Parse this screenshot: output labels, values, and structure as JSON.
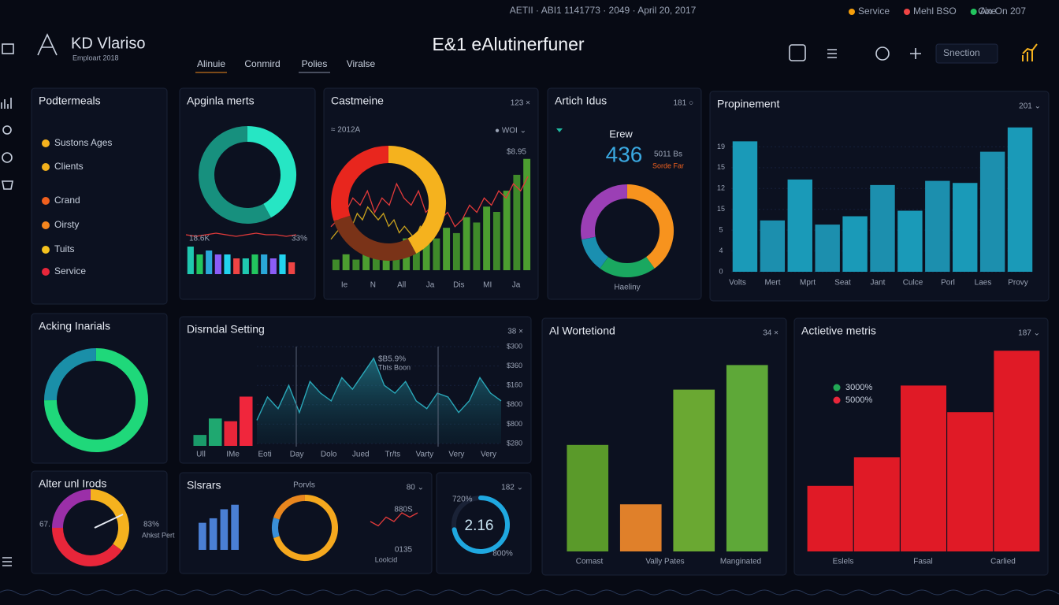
{
  "header": {
    "status": "AETII · ABI1 1141773 · 2049 · April 20, 2017",
    "brand": "KD Vlariso",
    "brand_sub": "Emploart 2018",
    "title": "E&1 eAlutinerfuner",
    "tabs": [
      "Alinuie",
      "Conmird",
      "Polies",
      "Viralse"
    ],
    "legend": [
      {
        "name": "Service",
        "color": "#f59e0b"
      },
      {
        "name": "Mehl BSO",
        "color": "#ef4444"
      },
      {
        "name": "Axe",
        "color": "#22c55e"
      }
    ],
    "status_right": "Cin On 207",
    "dropdown": "Snection"
  },
  "panels": [
    {
      "title": "Podtermeals",
      "items": [
        {
          "name": "Sustons Ages",
          "color": "#f5b21e"
        },
        {
          "name": "Clients",
          "color": "#f2b01c"
        },
        {
          "name": "Crand",
          "color": "#f0601e"
        },
        {
          "name": "Oirsty",
          "color": "#f5861e"
        },
        {
          "name": "Tuits",
          "color": "#f5c21e"
        },
        {
          "name": "Service",
          "color": "#e8263a"
        }
      ]
    },
    {
      "title": "Apginla merts",
      "annotations": [
        "18.6K",
        "33%"
      ],
      "charts": [
        {
          "type": "donut",
          "values": [
            42,
            58
          ],
          "colors": [
            "#26e6c4",
            "#17907e"
          ]
        },
        {
          "type": "line",
          "values": [
            5,
            4,
            5,
            6,
            5,
            4,
            5,
            6,
            5,
            5,
            4,
            5
          ],
          "ylim": [
            0,
            8
          ],
          "color": "#e23a3a"
        },
        {
          "type": "bar",
          "values": [
            7,
            5,
            6,
            5,
            5,
            4,
            4,
            5,
            5,
            4,
            5,
            3
          ],
          "ylim": [
            0,
            8
          ],
          "colors": [
            "#1fc8b0",
            "#22c55e",
            "#2aa7d8",
            "#8b5cf6",
            "#22d3ee",
            "#ef4444"
          ]
        }
      ]
    },
    {
      "title": "Castmeine",
      "corner": "123 ×",
      "annotations": [
        "≈ 2012A",
        "● WOI ⌄",
        "$8.95"
      ],
      "xlabels": [
        "Ie",
        "N",
        "All",
        "Ja",
        "Dis",
        "MI",
        "Ja"
      ],
      "charts": [
        {
          "type": "bar",
          "values": [
            2,
            3,
            2,
            4,
            3,
            5,
            4,
            6,
            5,
            7,
            6,
            8,
            7,
            10,
            9,
            12,
            11,
            15,
            18,
            21
          ],
          "ylim": [
            0,
            22
          ],
          "colors": [
            "#3f8a2a",
            "#4c9e30"
          ]
        },
        {
          "type": "line",
          "values": [
            3,
            4,
            5,
            7,
            6,
            8,
            5,
            7,
            6,
            9,
            7,
            6,
            8,
            5,
            6,
            4,
            5,
            3,
            4,
            6,
            5,
            7,
            6,
            8,
            7,
            9,
            8,
            10
          ],
          "ylim": [
            0,
            11
          ],
          "color": "#e23a3a"
        },
        {
          "type": "line",
          "values": [
            2,
            3,
            4,
            5,
            4,
            6,
            5,
            7,
            6,
            5,
            6,
            4,
            5,
            3,
            4,
            3,
            2,
            4,
            3,
            5,
            4,
            6
          ],
          "ylim": [
            0,
            11
          ],
          "color": "#c9a21e"
        },
        {
          "type": "donut",
          "values": [
            42,
            28,
            30
          ],
          "colors": [
            "#f5b21e",
            "#7a3318",
            "#e8261e"
          ]
        }
      ]
    },
    {
      "title": "Artich Idus",
      "corner": "181 ○",
      "annotations": [
        "Erew",
        "436",
        "5011 Bs",
        "Sorde Far",
        "Haeliny"
      ],
      "charts": [
        {
          "type": "donut",
          "values": [
            40,
            20,
            12,
            28
          ],
          "colors": [
            "#f7931e",
            "#1aa860",
            "#1a8fb0",
            "#9b3fb5"
          ]
        }
      ]
    },
    {
      "title": "Propinement",
      "corner": "201 ⌄",
      "xlabels": [
        "Volts",
        "Mert",
        "Mprt",
        "Seat",
        "Jant",
        "Culce",
        "Porl",
        "Laes",
        "Provy"
      ],
      "charts": [
        {
          "type": "bar",
          "values": [
            18.8,
            7.4,
            13.3,
            6.8,
            8,
            12.5,
            8.8,
            13.1,
            12.8,
            17.3,
            20.8
          ],
          "ylim": [
            0,
            21
          ],
          "yticks": [
            0,
            {
              "value": 3,
              "label": "4"
            },
            {
              "value": 6,
              "label": "5"
            },
            {
              "value": 9,
              "label": "15"
            },
            12,
            {
              "value": 15,
              "label": "15"
            },
            {
              "value": 18,
              "label": "19"
            }
          ],
          "colors": [
            "#1a9ab8",
            "#1c8fae"
          ]
        }
      ]
    },
    {
      "title": "Acking Inarials",
      "charts": [
        {
          "type": "donut",
          "values": [
            75,
            25
          ],
          "colors": [
            "#1fd87a",
            "#1a8fa8"
          ]
        }
      ]
    },
    {
      "title": "Disrndal Setting",
      "corner": "38 ×",
      "annotations": [
        "$B5.9%",
        "Tbts Boon"
      ],
      "xlabels": [
        "Ull",
        "IMe",
        "Eoti",
        "Day",
        "Dolo",
        "Jued",
        "Tr/ts",
        "Varty",
        "Very",
        "Very"
      ],
      "charts": [
        {
          "type": "bar",
          "values": [
            2,
            5,
            4.5,
            9
          ],
          "ylim": [
            0,
            9.5
          ],
          "colors": [
            "#1a9a6a",
            "#1fa870",
            "#e8263a",
            "#f0263c"
          ]
        },
        {
          "type": "area",
          "values": [
            1.2,
            2.4,
            1.8,
            3,
            1.6,
            3.2,
            2.6,
            2.2,
            3.4,
            2.8,
            3.6,
            4.4,
            3,
            2.6,
            3.2,
            2.2,
            1.8,
            2.6,
            2.4,
            1.6,
            2.2,
            3.4,
            2.6,
            2.2
          ],
          "ylim": [
            0,
            5
          ],
          "yticks": [
            {
              "value": 0,
              "label": "$280"
            },
            {
              "value": 1,
              "label": "$800"
            },
            {
              "value": 2,
              "label": "$800"
            },
            {
              "value": 3,
              "label": "$160"
            },
            {
              "value": 4,
              "label": "$360"
            },
            {
              "value": 5,
              "label": "$300"
            }
          ],
          "color": "#2aa7b8"
        }
      ]
    },
    {
      "title": "Al Wortetiond",
      "corner": "34 ×",
      "xlabels": [
        "Comast",
        "Vally Pates",
        "Manginated"
      ],
      "charts": [
        {
          "type": "bar",
          "values": [
            5.2,
            2.3,
            7.9,
            9.1
          ],
          "ylim": [
            0,
            10
          ],
          "colors": [
            "#5a9a2a",
            "#e0802a",
            "#6aa832",
            "#5ea838"
          ]
        }
      ]
    },
    {
      "title": "Actietive metris",
      "corner": "187 ⌄",
      "items": [
        {
          "name": "3000%",
          "color": "#22a855"
        },
        {
          "name": "5000%",
          "color": "#e8263a"
        }
      ],
      "xlabels": [
        "Eslels",
        "Fasal",
        "Carlied"
      ],
      "charts": [
        {
          "type": "bar",
          "values": [
            3.2,
            4.6,
            8.1,
            6.8,
            9.8
          ],
          "ylim": [
            0,
            10
          ],
          "colors": [
            "#e01a26"
          ]
        }
      ]
    },
    {
      "title": "Alter unl Irods",
      "annotations": [
        "67.",
        "83%",
        "Ahkst Pert"
      ],
      "charts": [
        {
          "type": "donut",
          "values": [
            35,
            40,
            25
          ],
          "colors": [
            "#f5b21e",
            "#e8263a",
            "#9b2fa8"
          ]
        }
      ]
    },
    {
      "title": "Slsrars",
      "corner": "80 ⌄",
      "annotations": [
        "Porvls",
        "880S",
        "0135",
        "Loolcid"
      ],
      "charts": [
        {
          "type": "bar",
          "values": [
            6,
            7,
            9,
            10
          ],
          "ylim": [
            0,
            11
          ],
          "colors": [
            "#4a7fd4"
          ]
        },
        {
          "type": "donut",
          "values": [
            70,
            10,
            20
          ],
          "colors": [
            "#f5a81e",
            "#3a8fd8",
            "#e8861e"
          ]
        },
        {
          "type": "line",
          "values": [
            6,
            5,
            7,
            6,
            8,
            7,
            8
          ],
          "ylim": [
            0,
            10
          ],
          "color": "#e23a3a"
        }
      ]
    },
    {
      "corner": "182 ⌄",
      "annotations": [
        "720%",
        "2.16",
        "800%"
      ],
      "charts": [
        {
          "type": "gauge",
          "value": 72,
          "ylim": [
            0,
            100
          ],
          "color": "#1fa8e0"
        }
      ]
    }
  ]
}
